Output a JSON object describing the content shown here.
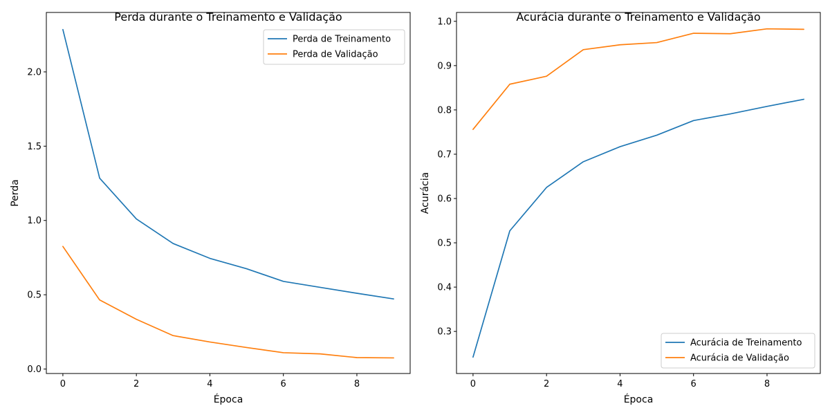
{
  "chart_data": [
    {
      "type": "line",
      "title": "Perda durante o Treinamento e Validação",
      "xlabel": "Época",
      "ylabel": "Perda",
      "x": [
        0,
        1,
        2,
        3,
        4,
        5,
        6,
        7,
        8,
        9
      ],
      "xlim": [
        -0.45,
        9.45
      ],
      "ylim": [
        -0.03,
        2.4
      ],
      "xticks": [
        0,
        2,
        4,
        6,
        8
      ],
      "yticks": [
        0.0,
        0.5,
        1.0,
        1.5,
        2.0
      ],
      "ytick_labels": [
        "0.0",
        "0.5",
        "1.0",
        "1.5",
        "2.0"
      ],
      "grid": false,
      "legend_position": "top-right",
      "series": [
        {
          "name": "Perda de Treinamento",
          "color": "#1f77b4",
          "values": [
            2.285,
            1.285,
            1.01,
            0.845,
            0.745,
            0.675,
            0.59,
            0.55,
            0.51,
            0.472
          ]
        },
        {
          "name": "Perda de Validação",
          "color": "#ff7f0e",
          "values": [
            0.825,
            0.465,
            0.335,
            0.225,
            0.182,
            0.145,
            0.11,
            0.102,
            0.077,
            0.075
          ]
        }
      ]
    },
    {
      "type": "line",
      "title": "Acurácia durante o Treinamento e Validação",
      "xlabel": "Época",
      "ylabel": "Acurácia",
      "x": [
        0,
        1,
        2,
        3,
        4,
        5,
        6,
        7,
        8,
        9
      ],
      "xlim": [
        -0.45,
        9.45
      ],
      "ylim": [
        0.205,
        1.02
      ],
      "xticks": [
        0,
        2,
        4,
        6,
        8
      ],
      "yticks": [
        0.3,
        0.4,
        0.5,
        0.6,
        0.7,
        0.8,
        0.9,
        1.0
      ],
      "ytick_labels": [
        "0.3",
        "0.4",
        "0.5",
        "0.6",
        "0.7",
        "0.8",
        "0.9",
        "1.0"
      ],
      "grid": false,
      "legend_position": "bottom-right",
      "series": [
        {
          "name": "Acurácia de Treinamento",
          "color": "#1f77b4",
          "values": [
            0.242,
            0.527,
            0.625,
            0.683,
            0.717,
            0.743,
            0.776,
            0.791,
            0.808,
            0.824
          ]
        },
        {
          "name": "Acurácia de Validação",
          "color": "#ff7f0e",
          "values": [
            0.756,
            0.858,
            0.876,
            0.936,
            0.947,
            0.952,
            0.973,
            0.972,
            0.983,
            0.982
          ]
        }
      ]
    }
  ]
}
